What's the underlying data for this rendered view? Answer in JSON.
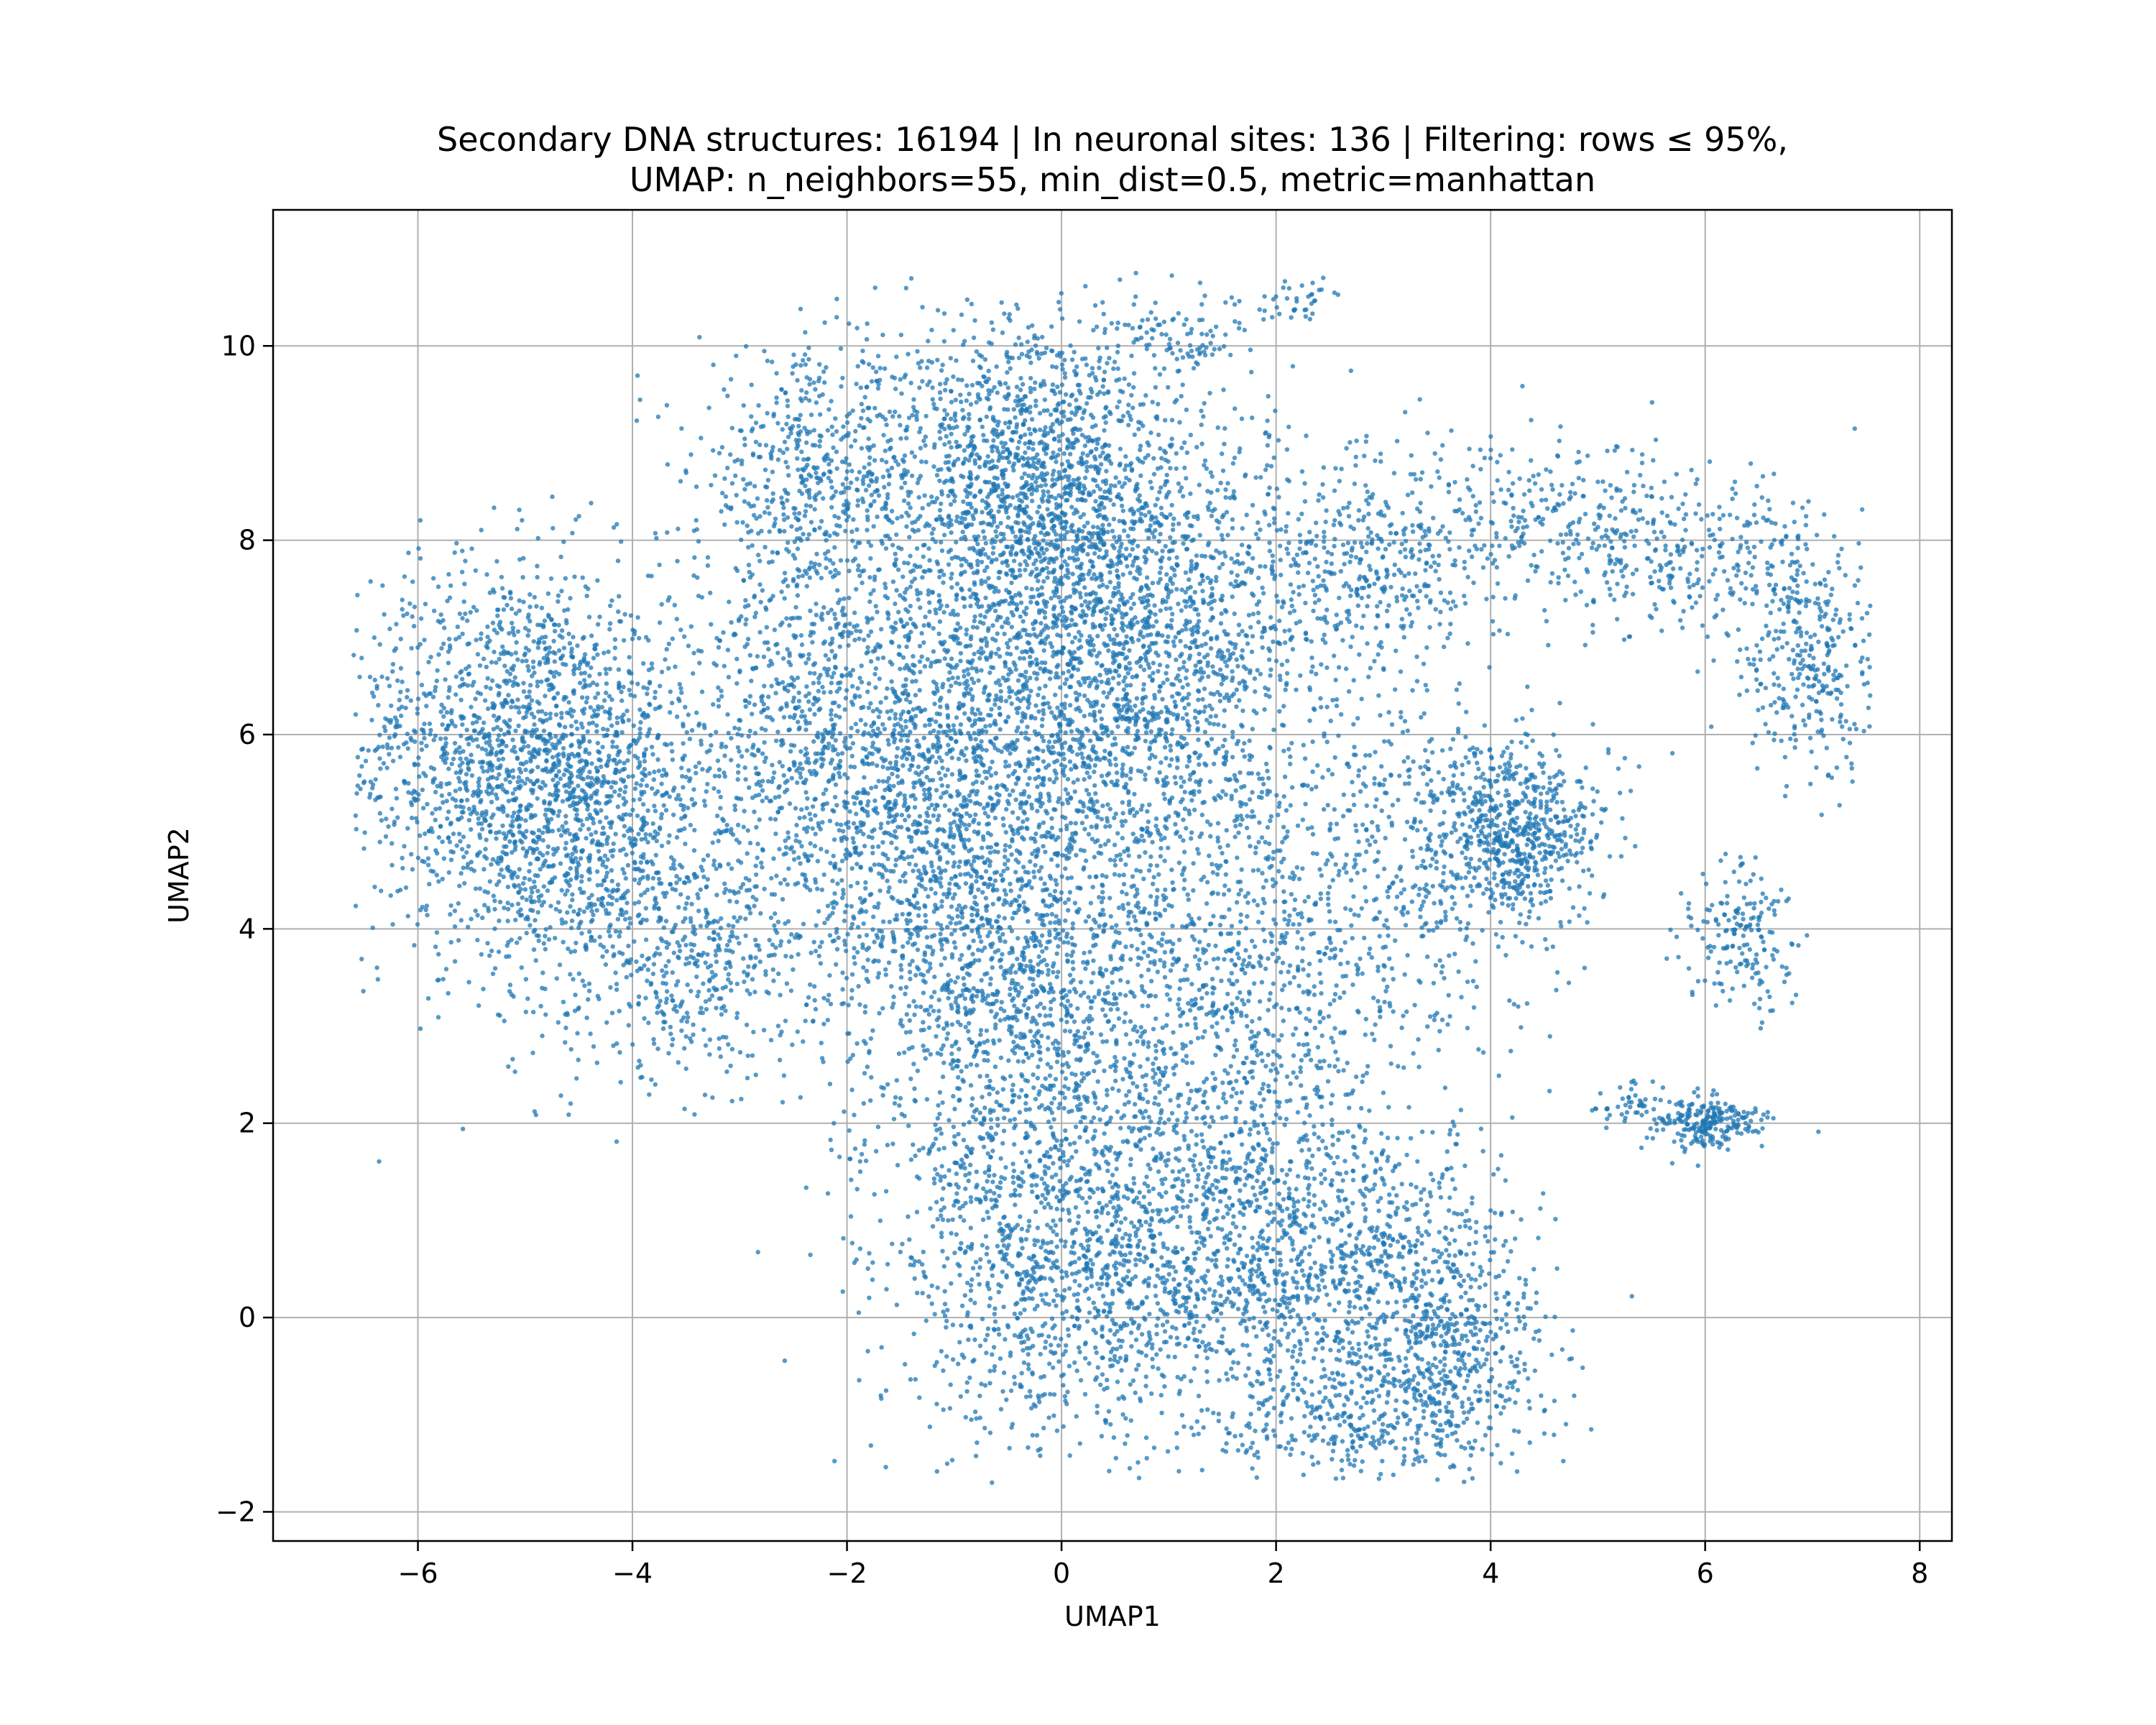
{
  "chart_data": {
    "type": "scatter",
    "title_lines": [
      "Secondary DNA structures: 16194 | In neuronal sites: 136 | Filtering: rows ≤ 95%,",
      "UMAP: n_neighbors=55, min_dist=0.5, metric=manhattan"
    ],
    "xlabel": "UMAP1",
    "ylabel": "UMAP2",
    "xlim": [
      -7.35,
      8.3
    ],
    "ylim": [
      -2.3,
      11.4
    ],
    "xticks": [
      -6,
      -4,
      -2,
      0,
      2,
      4,
      6,
      8
    ],
    "xtick_labels": [
      "−6",
      "−4",
      "−2",
      "0",
      "2",
      "4",
      "6",
      "8"
    ],
    "yticks": [
      -2,
      0,
      2,
      4,
      6,
      8,
      10
    ],
    "ytick_labels": [
      "−2",
      "0",
      "2",
      "4",
      "6",
      "8",
      "10"
    ],
    "grid": true,
    "point_color": "#1f77b4",
    "total_points": 16194,
    "series": [
      {
        "clusters": [
          {
            "cx": -5.2,
            "cy": 5.8,
            "sx": 0.75,
            "sy": 1.0,
            "n": 1500
          },
          {
            "cx": -4.2,
            "cy": 5.0,
            "sx": 0.6,
            "sy": 1.1,
            "n": 900
          },
          {
            "cx": -3.3,
            "cy": 3.6,
            "sx": 0.6,
            "sy": 0.55,
            "n": 300
          },
          {
            "cx": -2.3,
            "cy": 8.7,
            "sx": 0.55,
            "sy": 0.6,
            "n": 500
          },
          {
            "cx": -2.4,
            "cy": 6.0,
            "sx": 0.55,
            "sy": 1.2,
            "n": 700
          },
          {
            "cx": -1.3,
            "cy": 5.3,
            "sx": 0.65,
            "sy": 1.3,
            "n": 1200
          },
          {
            "cx": -0.3,
            "cy": 8.6,
            "sx": 0.7,
            "sy": 0.9,
            "n": 1500
          },
          {
            "cx": 0.2,
            "cy": 6.3,
            "sx": 0.9,
            "sy": 1.4,
            "n": 1700
          },
          {
            "cx": 1.1,
            "cy": 7.2,
            "sx": 0.7,
            "sy": 1.0,
            "n": 700
          },
          {
            "cx": -0.4,
            "cy": 3.2,
            "sx": 0.7,
            "sy": 1.1,
            "n": 900
          },
          {
            "cx": 1.5,
            "cy": 3.3,
            "sx": 0.9,
            "sy": 1.0,
            "n": 800
          },
          {
            "cx": -0.2,
            "cy": 0.6,
            "sx": 0.75,
            "sy": 1.0,
            "n": 900
          },
          {
            "cx": 1.3,
            "cy": 0.6,
            "sx": 0.9,
            "sy": 0.95,
            "n": 1100
          },
          {
            "cx": 2.8,
            "cy": 0.5,
            "sx": 0.75,
            "sy": 0.9,
            "n": 700
          },
          {
            "cx": 3.7,
            "cy": -0.3,
            "sx": 0.45,
            "sy": 0.6,
            "n": 450
          },
          {
            "cx": 2.7,
            "cy": -1.1,
            "sx": 0.6,
            "sy": 0.25,
            "n": 250
          },
          {
            "cx": 4.2,
            "cy": 5.0,
            "sx": 0.4,
            "sy": 0.45,
            "n": 650
          },
          {
            "cx": 3.2,
            "cy": 4.5,
            "sx": 0.7,
            "sy": 0.9,
            "n": 300
          },
          {
            "cx": 3.0,
            "cy": 7.8,
            "sx": 0.6,
            "sy": 0.55,
            "n": 380
          },
          {
            "cx": 4.7,
            "cy": 8.2,
            "sx": 0.8,
            "sy": 0.4,
            "n": 280
          },
          {
            "cx": 5.9,
            "cy": 7.8,
            "sx": 0.6,
            "sy": 0.4,
            "n": 250
          },
          {
            "cx": 7.0,
            "cy": 6.8,
            "sx": 0.35,
            "sy": 0.6,
            "n": 330
          },
          {
            "cx": 6.3,
            "cy": 3.9,
            "sx": 0.25,
            "sy": 0.4,
            "n": 180
          },
          {
            "cx": 6.0,
            "cy": 2.0,
            "sx": 0.25,
            "sy": 0.14,
            "n": 230
          },
          {
            "cx": 5.3,
            "cy": 2.2,
            "sx": 0.2,
            "sy": 0.14,
            "n": 45
          },
          {
            "cx": 1.2,
            "cy": 10.1,
            "sx": 0.35,
            "sy": 0.2,
            "n": 70
          },
          {
            "cx": 2.2,
            "cy": 10.5,
            "sx": 0.2,
            "sy": 0.12,
            "n": 40
          },
          {
            "cx": 2.0,
            "cy": 5.6,
            "sx": 1.3,
            "sy": 1.4,
            "n": 364
          }
        ]
      }
    ]
  }
}
